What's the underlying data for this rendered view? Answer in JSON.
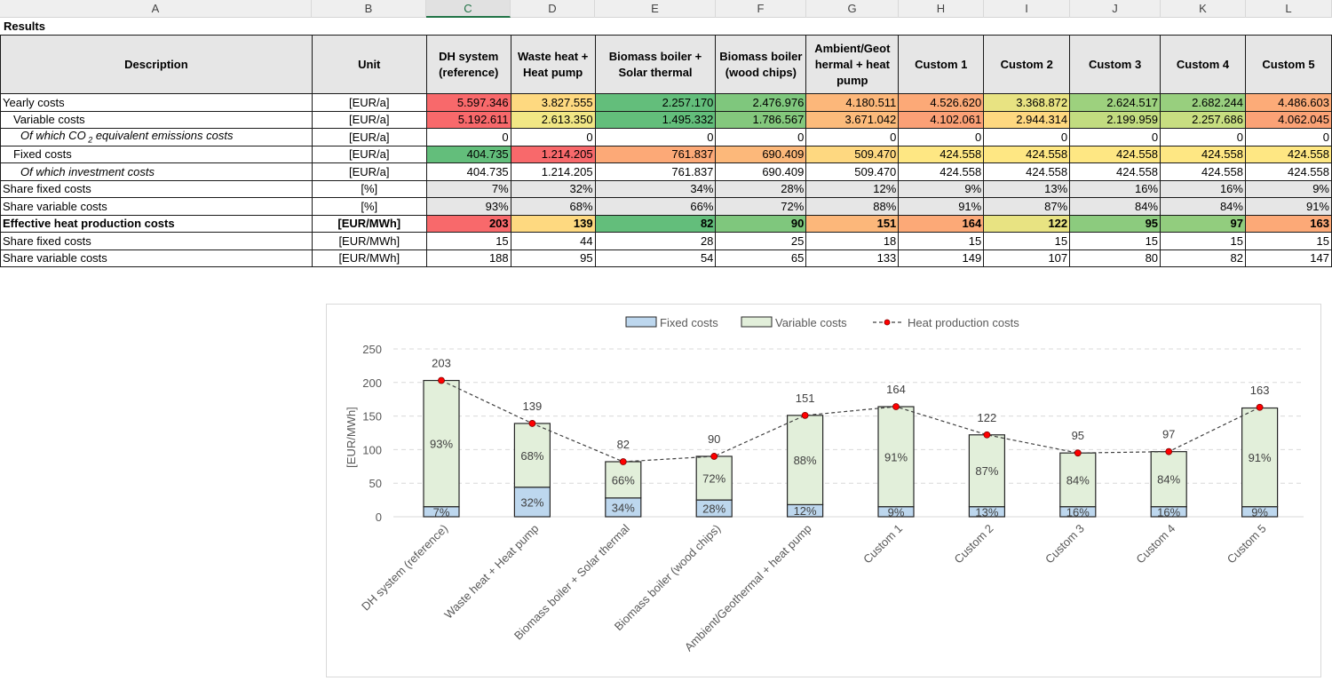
{
  "spreadsheet": {
    "column_letters": [
      "A",
      "B",
      "C",
      "D",
      "E",
      "F",
      "G",
      "H",
      "I",
      "J",
      "K",
      "L"
    ],
    "active_column": "C",
    "results_title": "Results",
    "header": {
      "description": "Description",
      "unit": "Unit",
      "scenarios": [
        "DH system (reference)",
        "Waste heat + Heat pump",
        "Biomass boiler + Solar thermal",
        "Biomass boiler (wood chips)",
        "Ambient/Geot hermal + heat pump",
        "Custom 1",
        "Custom 2",
        "Custom 3",
        "Custom 4",
        "Custom 5"
      ]
    },
    "rows": [
      {
        "label": "Yearly costs",
        "unit": "[EUR/a]",
        "style": "normal",
        "indent": 0,
        "values": [
          "5.597.346",
          "3.827.555",
          "2.257.170",
          "2.476.976",
          "4.180.511",
          "4.526.620",
          "3.368.872",
          "2.624.517",
          "2.682.244",
          "4.486.603"
        ],
        "colors": [
          "#f8696b",
          "#fed980",
          "#63be7b",
          "#7fc77d",
          "#fcb77a",
          "#fca977",
          "#e8e382",
          "#9dd17e",
          "#98cf7e",
          "#fcab78"
        ]
      },
      {
        "label": "Variable costs",
        "unit": "[EUR/a]",
        "style": "normal",
        "indent": 1,
        "values": [
          "5.192.611",
          "2.613.350",
          "1.495.332",
          "1.786.567",
          "3.671.042",
          "4.102.061",
          "2.944.314",
          "2.199.959",
          "2.257.686",
          "4.062.045"
        ],
        "colors": [
          "#f8696b",
          "#f1e785",
          "#63be7b",
          "#84c87d",
          "#fcbb7b",
          "#fba076",
          "#fed880",
          "#c2dc80",
          "#c8de81",
          "#fba276"
        ]
      },
      {
        "label": "Of which CO",
        "label_sub": "2",
        "label_suffix": " equivalent emissions costs",
        "unit": "[EUR/a]",
        "style": "italic",
        "indent": 2,
        "values": [
          "0",
          "0",
          "0",
          "0",
          "0",
          "0",
          "0",
          "0",
          "0",
          "0"
        ],
        "colors": [
          "",
          "",
          "",
          "",
          "",
          "",
          "",
          "",
          "",
          ""
        ]
      },
      {
        "label": "Fixed costs",
        "unit": "[EUR/a]",
        "style": "normal",
        "indent": 1,
        "values": [
          "404.735",
          "1.214.205",
          "761.837",
          "690.409",
          "509.470",
          "424.558",
          "424.558",
          "424.558",
          "424.558",
          "424.558"
        ],
        "colors": [
          "#63be7b",
          "#f8696b",
          "#fca977",
          "#fcb87a",
          "#fed880",
          "#fee783",
          "#fee783",
          "#fee783",
          "#fee783",
          "#fee783"
        ]
      },
      {
        "label": "Of which investment costs",
        "unit": "[EUR/a]",
        "style": "italic",
        "indent": 2,
        "values": [
          "404.735",
          "1.214.205",
          "761.837",
          "690.409",
          "509.470",
          "424.558",
          "424.558",
          "424.558",
          "424.558",
          "424.558"
        ],
        "colors": [
          "",
          "",
          "",
          "",
          "",
          "",
          "",
          "",
          "",
          ""
        ]
      },
      {
        "label": "Share fixed costs",
        "unit": "[%]",
        "style": "grey",
        "indent": 0,
        "values": [
          "7%",
          "32%",
          "34%",
          "28%",
          "12%",
          "9%",
          "13%",
          "16%",
          "16%",
          "9%"
        ],
        "colors": [
          "",
          "",
          "",
          "",
          "",
          "",
          "",
          "",
          "",
          ""
        ]
      },
      {
        "label": "Share variable costs",
        "unit": "[%]",
        "style": "grey",
        "indent": 0,
        "values": [
          "93%",
          "68%",
          "66%",
          "72%",
          "88%",
          "91%",
          "87%",
          "84%",
          "84%",
          "91%"
        ],
        "colors": [
          "",
          "",
          "",
          "",
          "",
          "",
          "",
          "",
          "",
          ""
        ]
      },
      {
        "label": "Effective heat production costs",
        "unit": "[EUR/MWh]",
        "style": "bold",
        "indent": 0,
        "values": [
          "203",
          "139",
          "82",
          "90",
          "151",
          "164",
          "122",
          "95",
          "97",
          "163"
        ],
        "colors": [
          "#f8696b",
          "#fed980",
          "#63be7b",
          "#7fc77d",
          "#fcb77a",
          "#fca977",
          "#e8e382",
          "#8ccb7e",
          "#92cd7e",
          "#fca977"
        ]
      },
      {
        "label": "Share fixed costs",
        "unit": "[EUR/MWh]",
        "style": "normal",
        "indent": 0,
        "values": [
          "15",
          "44",
          "28",
          "25",
          "18",
          "15",
          "15",
          "15",
          "15",
          "15"
        ],
        "colors": [
          "",
          "",
          "",
          "",
          "",
          "",
          "",
          "",
          "",
          ""
        ]
      },
      {
        "label": "Share variable costs",
        "unit": "[EUR/MWh]",
        "style": "normal",
        "indent": 0,
        "values": [
          "188",
          "95",
          "54",
          "65",
          "133",
          "149",
          "107",
          "80",
          "82",
          "147"
        ],
        "colors": [
          "",
          "",
          "",
          "",
          "",
          "",
          "",
          "",
          "",
          ""
        ]
      }
    ]
  },
  "chart_data": {
    "type": "bar",
    "stacked": true,
    "title": "",
    "xlabel": "",
    "ylabel": "[EUR/MWh]",
    "ylim": [
      0,
      250
    ],
    "yticks": [
      0,
      50,
      100,
      150,
      200,
      250
    ],
    "grid": true,
    "legend_position": "top",
    "categories": [
      "DH system (reference)",
      "Waste heat + Heat pump",
      "Biomass boiler + Solar thermal",
      "Biomass boiler (wood chips)",
      "Ambient/Geothermal + heat pump",
      "Custom 1",
      "Custom 2",
      "Custom 3",
      "Custom 4",
      "Custom 5"
    ],
    "series": [
      {
        "name": "Fixed costs",
        "type": "bar",
        "color": "#bdd7ee",
        "values": [
          15,
          44,
          28,
          25,
          18,
          15,
          15,
          15,
          15,
          15
        ],
        "labels": [
          "7%",
          "32%",
          "34%",
          "28%",
          "12%",
          "9%",
          "13%",
          "16%",
          "16%",
          "9%"
        ]
      },
      {
        "name": "Variable costs",
        "type": "bar",
        "color": "#e2efda",
        "values": [
          188,
          95,
          54,
          65,
          133,
          149,
          107,
          80,
          82,
          147
        ],
        "labels": [
          "93%",
          "68%",
          "66%",
          "72%",
          "88%",
          "91%",
          "87%",
          "84%",
          "84%",
          "91%"
        ]
      },
      {
        "name": "Heat production costs",
        "type": "line",
        "style": "dashed",
        "marker_color": "#ff0000",
        "values": [
          203,
          139,
          82,
          90,
          151,
          164,
          122,
          95,
          97,
          163
        ],
        "labels": [
          "203",
          "139",
          "82",
          "90",
          "151",
          "164",
          "122",
          "95",
          "97",
          "163"
        ]
      }
    ]
  }
}
